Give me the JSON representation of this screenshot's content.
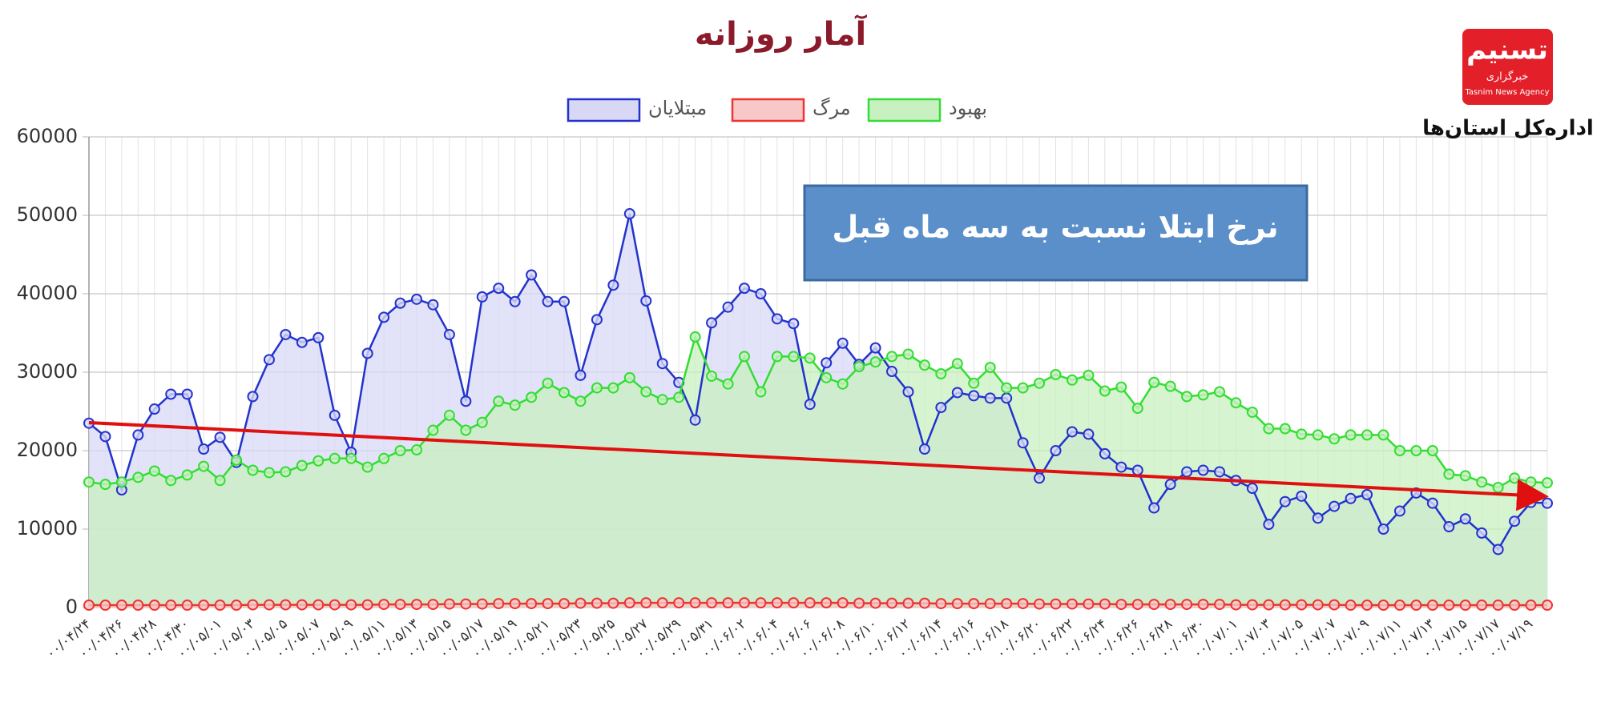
{
  "chart_data": {
    "type": "line",
    "title": "آمار روزانه",
    "annotation": "نرخ ابتلا نسبت به سه ماه قبل",
    "categories": [
      "۰۰/۰۴/۲۴",
      null,
      "۰۰/۰۴/۲۶",
      null,
      "۰۰/۰۴/۲۸",
      null,
      "۰۰/۰۴/۳۰",
      null,
      "۰۰/۰۵/۰۱",
      null,
      "۰۰/۰۵/۰۳",
      null,
      "۰۰/۰۵/۰۵",
      null,
      "۰۰/۰۵/۰۷",
      null,
      "۰۰/۰۵/۰۹",
      null,
      "۰۰/۰۵/۱۱",
      null,
      "۰۰/۰۵/۱۳",
      null,
      "۰۰/۰۵/۱۵",
      null,
      "۰۰/۰۵/۱۷",
      null,
      "۰۰/۰۵/۱۹",
      null,
      "۰۰/۰۵/۲۱",
      null,
      "۰۰/۰۵/۲۳",
      null,
      "۰۰/۰۵/۲۵",
      null,
      "۰۰/۰۵/۲۷",
      null,
      "۰۰/۰۵/۲۹",
      null,
      "۰۰/۰۵/۳۱",
      null,
      "۰۰/۰۶/۰۲",
      null,
      "۰۰/۰۶/۰۴",
      null,
      "۰۰/۰۶/۰۶",
      null,
      "۰۰/۰۶/۰۸",
      null,
      "۰۰/۰۶/۱۰",
      null,
      "۰۰/۰۶/۱۲",
      null,
      "۰۰/۰۶/۱۴",
      null,
      "۰۰/۰۶/۱۶",
      null,
      "۰۰/۰۶/۱۸",
      null,
      "۰۰/۰۶/۲۰",
      null,
      "۰۰/۰۶/۲۲",
      null,
      "۰۰/۰۶/۲۴",
      null,
      "۰۰/۰۶/۲۶",
      null,
      "۰۰/۰۶/۲۸",
      null,
      "۰۰/۰۶/۳۰",
      null,
      "۰۰/۰۷/۰۱",
      null,
      "۰۰/۰۷/۰۳",
      null,
      "۰۰/۰۷/۰۵",
      null,
      "۰۰/۰۷/۰۷",
      null,
      "۰۰/۰۷/۰۹",
      null,
      "۰۰/۰۷/۱۱",
      null,
      "۰۰/۰۷/۱۳",
      null,
      "۰۰/۰۷/۱۵",
      null,
      "۰۰/۰۷/۱۷",
      null,
      "۰۰/۰۷/۱۹",
      null
    ],
    "series": [
      {
        "name": "مبتلایان",
        "color": "#2233cc",
        "fill": "#d8d8f5",
        "values": [
          23500,
          21800,
          15000,
          22000,
          25300,
          27200,
          27200,
          20200,
          21700,
          18500,
          26900,
          31600,
          34800,
          33800,
          34400,
          24500,
          19800,
          32400,
          37000,
          38800,
          39300,
          38600,
          34800,
          26300,
          39600,
          40700,
          39000,
          42400,
          39000,
          39000,
          29600,
          36700,
          41100,
          50200,
          39100,
          31100,
          28700,
          23900,
          36300,
          38300,
          40700,
          40000,
          36800,
          36200,
          25900,
          31200,
          33700,
          31000,
          33100,
          30100,
          27500,
          20200,
          25500,
          27400,
          27000,
          26700,
          26700,
          21000,
          16500,
          20000,
          22400,
          22100,
          19600,
          17900,
          17500,
          12700,
          15700,
          17300,
          17500,
          17300,
          16200,
          15200,
          10600,
          13500,
          14200,
          11400,
          12900,
          13900,
          14400,
          10000,
          12300,
          14600,
          13300,
          10300,
          11300,
          9500,
          7400,
          11000,
          13400,
          13300
        ]
      },
      {
        "name": "مرگ",
        "color": "#ee3333",
        "fill": "#f8c8c8",
        "values": [
          300,
          300,
          300,
          300,
          300,
          300,
          300,
          300,
          300,
          300,
          350,
          350,
          350,
          350,
          350,
          350,
          350,
          350,
          400,
          400,
          400,
          400,
          450,
          450,
          450,
          500,
          500,
          500,
          500,
          500,
          550,
          550,
          550,
          600,
          600,
          600,
          600,
          600,
          600,
          600,
          600,
          600,
          600,
          600,
          600,
          600,
          600,
          550,
          550,
          550,
          550,
          550,
          500,
          500,
          500,
          500,
          500,
          500,
          450,
          450,
          450,
          450,
          450,
          400,
          400,
          400,
          400,
          400,
          400,
          400,
          350,
          350,
          350,
          350,
          350,
          350,
          350,
          300,
          300,
          300,
          300,
          300,
          300,
          300,
          300,
          300,
          300,
          300,
          300,
          300
        ]
      },
      {
        "name": "بهبود",
        "color": "#33dd33",
        "fill": "#c8f0c0",
        "values": [
          16000,
          15700,
          16000,
          16600,
          17400,
          16200,
          16900,
          18000,
          16200,
          18800,
          17500,
          17200,
          17300,
          18100,
          18700,
          19000,
          19000,
          17900,
          19000,
          20000,
          20100,
          22600,
          24500,
          22600,
          23600,
          26300,
          25800,
          26800,
          28600,
          27400,
          26300,
          28000,
          28000,
          29300,
          27500,
          26500,
          26800,
          34500,
          29500,
          28500,
          32000,
          27500,
          32000,
          32000,
          31800,
          29300,
          28500,
          30700,
          31300,
          32000,
          32300,
          30900,
          29800,
          31100,
          28600,
          30600,
          28000,
          28000,
          28600,
          29700,
          29000,
          29600,
          27600,
          28100,
          25400,
          28700,
          28200,
          26900,
          27100,
          27500,
          26100,
          24900,
          22800,
          22800,
          22100,
          22000,
          21500,
          22000,
          22000,
          22000,
          20000,
          20000,
          20000,
          17000,
          16800,
          16000,
          15300,
          16500,
          16000,
          15900
        ]
      }
    ],
    "ylim": [
      0,
      60000
    ],
    "yticks": [
      0,
      10000,
      20000,
      30000,
      40000,
      50000,
      60000
    ],
    "grid": true
  },
  "logo": {
    "name": "تسنیم",
    "kicker": "خبرگزاری",
    "english": "Tasnim News Agency"
  },
  "department": "اداره‌کل استان‌ها"
}
